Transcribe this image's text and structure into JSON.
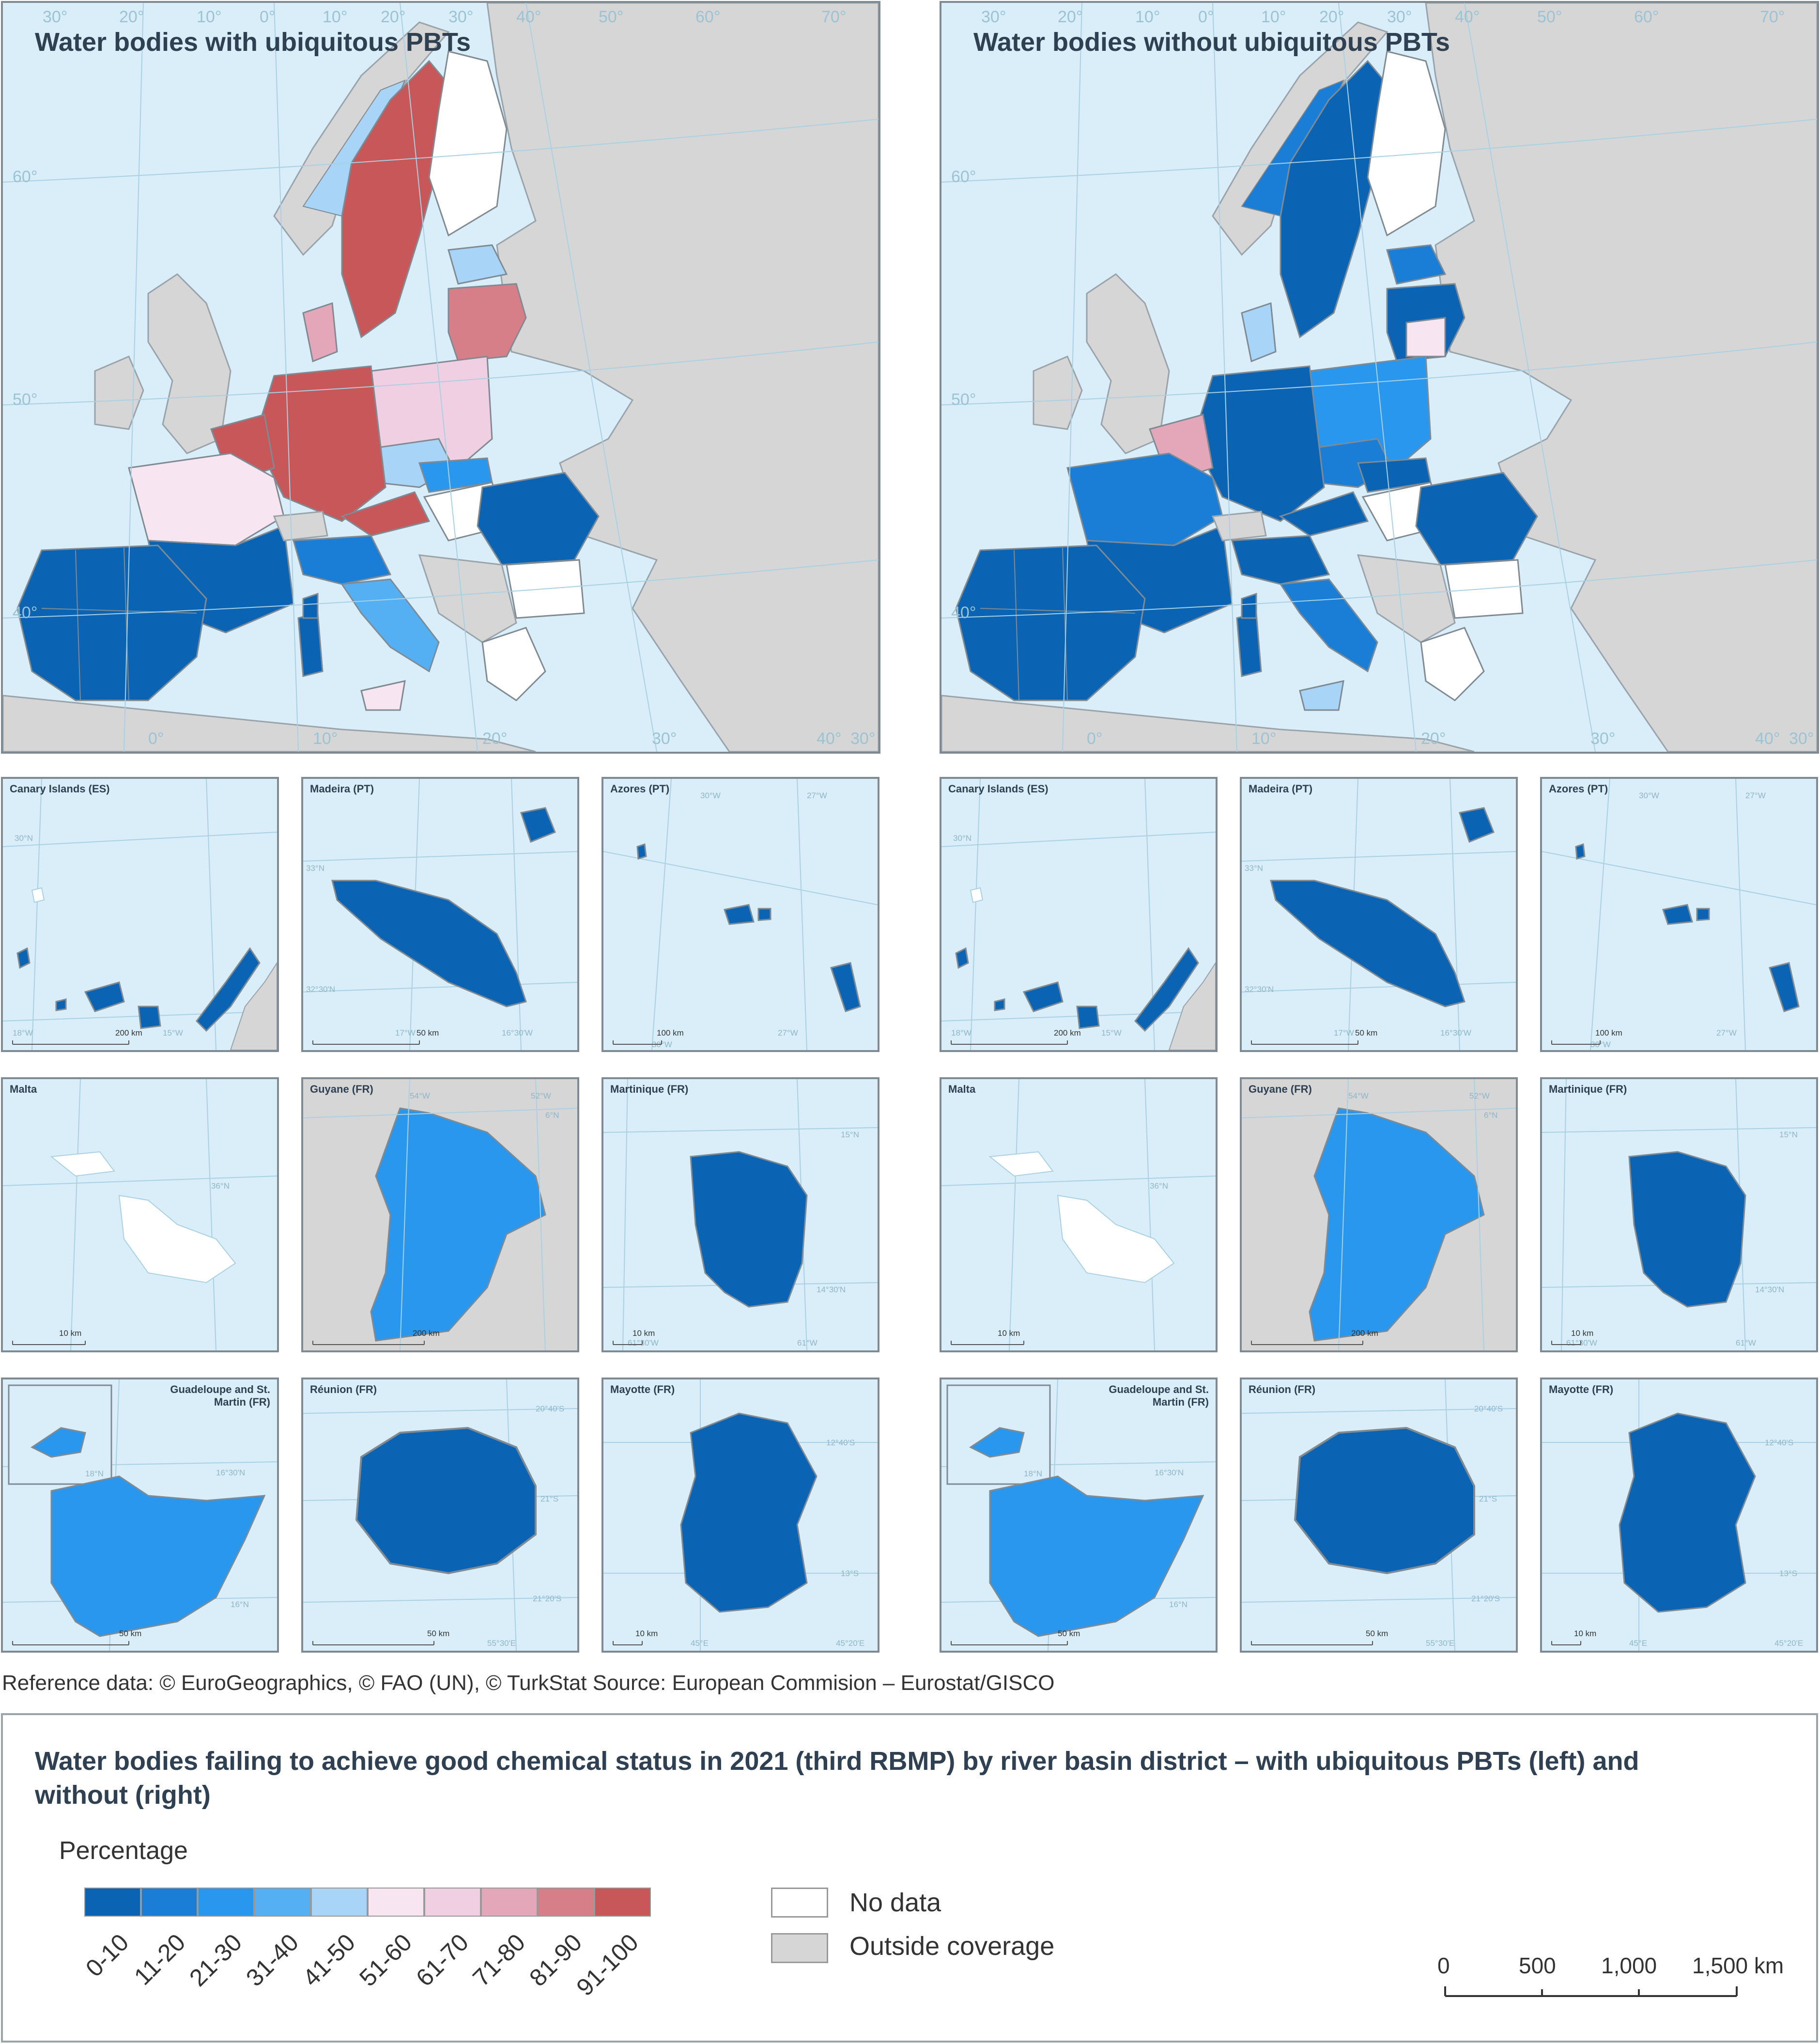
{
  "left_map": {
    "title": "Water bodies with ubiquitous PBTs"
  },
  "right_map": {
    "title": "Water bodies without ubiquitous PBTs"
  },
  "graticule_labels": {
    "top": [
      "30°",
      "20°",
      "10°",
      "0°",
      "10°",
      "20°",
      "30°",
      "40°",
      "50°",
      "60°",
      "70°"
    ],
    "left": [
      "60°",
      "50°",
      "40°"
    ],
    "bottom": [
      "0°",
      "10°",
      "20°",
      "30°",
      "40°",
      "30°"
    ]
  },
  "insets": [
    {
      "name": "Canary Islands (ES)",
      "scale": "200 km",
      "ticks": [
        "30°N",
        "18°W",
        "15°W"
      ]
    },
    {
      "name": "Madeira (PT)",
      "scale": "50 km",
      "ticks": [
        "33°N",
        "32°30'N",
        "17°W",
        "16°30'W"
      ]
    },
    {
      "name": "Azores (PT)",
      "scale": "100 km",
      "ticks": [
        "30°W",
        "27°W",
        "30°W",
        "27°W"
      ]
    },
    {
      "name": "Malta",
      "scale": "10 km",
      "ticks": [
        "36°N"
      ]
    },
    {
      "name": "Guyane (FR)",
      "scale": "200 km",
      "ticks": [
        "54°W",
        "52°W",
        "6°N"
      ]
    },
    {
      "name": "Martinique (FR)",
      "scale": "10 km",
      "ticks": [
        "15°N",
        "14°30'N",
        "61°30'W",
        "61°W"
      ]
    },
    {
      "name": "Guadeloupe and St. Martin (FR)",
      "scale": "50 km",
      "ticks": [
        "18°N",
        "16°30'N",
        "16°N"
      ]
    },
    {
      "name": "Réunion (FR)",
      "scale": "50 km",
      "ticks": [
        "20°40'S",
        "21°S",
        "21°20'S",
        "55°30'E"
      ]
    },
    {
      "name": "Mayotte (FR)",
      "scale": "10 km",
      "ticks": [
        "12°40'S",
        "13°S",
        "45°E",
        "45°20'E"
      ]
    }
  ],
  "source_text": "Reference data: © EuroGeographics, © FAO (UN), © TurkStat Source: European Commision – Eurostat/GISCO",
  "legend": {
    "title": "Water bodies failing to achieve good chemical status in 2021 (third RBMP) by river basin district – with ubiquitous PBTs (left) and without (right)",
    "subtitle": "Percentage",
    "classes": [
      {
        "label": "0-10",
        "color": "#0b64b3"
      },
      {
        "label": "11-20",
        "color": "#1b7ed6"
      },
      {
        "label": "21-30",
        "color": "#2a97ee"
      },
      {
        "label": "31-40",
        "color": "#54b0f2"
      },
      {
        "label": "41-50",
        "color": "#a8d4f7"
      },
      {
        "label": "51-60",
        "color": "#f7e6f1"
      },
      {
        "label": "61-70",
        "color": "#f0cfe2"
      },
      {
        "label": "71-80",
        "color": "#e3a7b9"
      },
      {
        "label": "81-90",
        "color": "#d77f89"
      },
      {
        "label": "91-100",
        "color": "#c8575a"
      }
    ],
    "no_data": "No data",
    "outside": "Outside coverage",
    "scale_bar": [
      "0",
      "500",
      "1,000",
      "1,500 km"
    ]
  },
  "colors": {
    "sea": "#d9eef9",
    "outside": "#d6d6d6",
    "no_data": "#ffffff",
    "border": "#7f8a92"
  }
}
